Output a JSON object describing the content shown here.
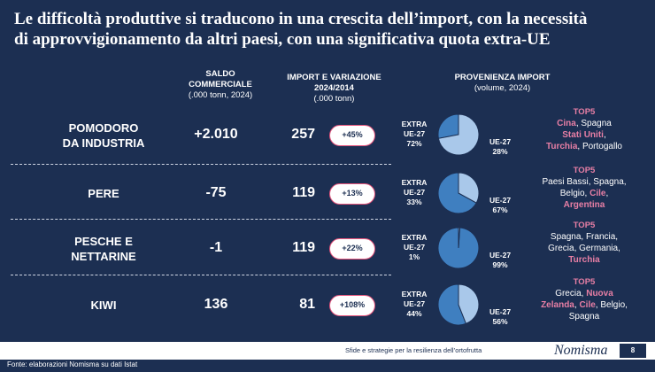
{
  "title": {
    "line1": "Le difficoltà produttive si traducono in una crescita dell’import, con la necessità",
    "line2": "di approvvigionamento da altri paesi, con una significativa quota extra-UE"
  },
  "headers": {
    "saldo": {
      "title1": "SALDO",
      "title2": "COMMERCIALE",
      "sub": "(.000 tonn, 2024)"
    },
    "import": {
      "title1": "IMPORT E VARIAZIONE",
      "title2": "2024/2014",
      "sub": "(.000 tonn)"
    },
    "provenienza": {
      "title1": "PROVENIENZA IMPORT",
      "sub": "(volume, 2024)"
    }
  },
  "colors": {
    "background": "#1c2f52",
    "extra_ue": "#a9c8ea",
    "ue27": "#3f7fc0",
    "accent": "#e87fa5"
  },
  "rows": [
    {
      "product_line1": "POMODORO",
      "product_line2": "DA INDUSTRIA",
      "saldo": "+2.010",
      "import": "257",
      "variation": "+45%",
      "extra_label1": "EXTRA",
      "extra_label2": "UE-27",
      "extra_pct": "72%",
      "extra_value": 72,
      "ue_label": "UE-27",
      "ue_pct": "28%",
      "ue_value": 28,
      "top5_label": "TOP5",
      "top5": [
        {
          "text": "Cina",
          "hl": true
        },
        {
          "text": ", Spagna",
          "hl": false
        },
        {
          "text": "\n",
          "hl": false
        },
        {
          "text": "Stati Uniti",
          "hl": true
        },
        {
          "text": ",",
          "hl": false
        },
        {
          "text": "\n",
          "hl": false
        },
        {
          "text": "Turchia",
          "hl": true
        },
        {
          "text": ", Portogallo",
          "hl": false
        }
      ]
    },
    {
      "product_line1": "PERE",
      "product_line2": "",
      "saldo": "-75",
      "import": "119",
      "variation": "+13%",
      "extra_label1": "EXTRA",
      "extra_label2": "UE-27",
      "extra_pct": "33%",
      "extra_value": 33,
      "ue_label": "UE-27",
      "ue_pct": "67%",
      "ue_value": 67,
      "top5_label": "TOP5",
      "top5": [
        {
          "text": "Paesi Bassi, Spagna,",
          "hl": false
        },
        {
          "text": "\n",
          "hl": false
        },
        {
          "text": "Belgio, ",
          "hl": false
        },
        {
          "text": "Cile",
          "hl": true
        },
        {
          "text": ",",
          "hl": false
        },
        {
          "text": "\n",
          "hl": false
        },
        {
          "text": "Argentina",
          "hl": true
        }
      ]
    },
    {
      "product_line1": "PESCHE E",
      "product_line2": "NETTARINE",
      "saldo": "-1",
      "import": "119",
      "variation": "+22%",
      "extra_label1": "EXTRA",
      "extra_label2": "UE-27",
      "extra_pct": "1%",
      "extra_value": 1,
      "ue_label": "UE-27",
      "ue_pct": "99%",
      "ue_value": 99,
      "top5_label": "TOP5",
      "top5": [
        {
          "text": "Spagna, Francia,",
          "hl": false
        },
        {
          "text": "\n",
          "hl": false
        },
        {
          "text": "Grecia, Germania,",
          "hl": false
        },
        {
          "text": "\n",
          "hl": false
        },
        {
          "text": "Turchia",
          "hl": true
        }
      ]
    },
    {
      "product_line1": "KIWI",
      "product_line2": "",
      "saldo": "136",
      "import": "81",
      "variation": "+108%",
      "extra_label1": "EXTRA",
      "extra_label2": "UE-27",
      "extra_pct": "44%",
      "extra_value": 44,
      "ue_label": "UE-27",
      "ue_pct": "56%",
      "ue_value": 56,
      "top5_label": "TOP5",
      "top5": [
        {
          "text": "Grecia, ",
          "hl": false
        },
        {
          "text": "Nuova",
          "hl": true
        },
        {
          "text": "\n",
          "hl": false
        },
        {
          "text": "Zelanda",
          "hl": true
        },
        {
          "text": ", ",
          "hl": false
        },
        {
          "text": "Cile",
          "hl": true
        },
        {
          "text": ", Belgio,",
          "hl": false
        },
        {
          "text": "\n",
          "hl": false
        },
        {
          "text": "Spagna",
          "hl": false
        }
      ]
    }
  ],
  "footer": {
    "text": "Sfide e strategie per la resilienza dell’ortofrutta",
    "logo": "Nomisma",
    "page": "8",
    "source": "Fonte: elaborazioni Nomisma su dati Istat"
  }
}
